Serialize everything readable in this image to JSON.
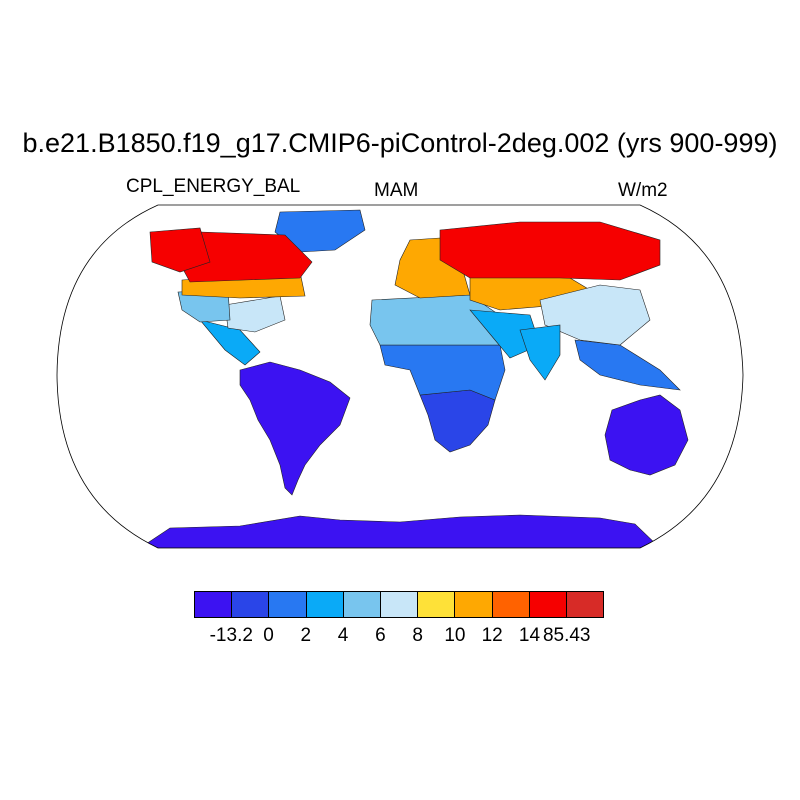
{
  "title": "b.e21.B1850.f19_g17.CMIP6-piControl-2deg.002 (yrs 900-999)",
  "left_label": "CPL_ENERGY_BAL",
  "center_label": "MAM",
  "right_label": "W/m2",
  "colorbar": {
    "colors": [
      "#3c12f2",
      "#2a45e8",
      "#2878f2",
      "#0aaaf7",
      "#78c5ee",
      "#c8e6f8",
      "#fee138",
      "#fea802",
      "#ff6200",
      "#f60000",
      "#d72b27"
    ],
    "labels": [
      "-13.2",
      "0",
      "2",
      "4",
      "6",
      "8",
      "10",
      "12",
      "14",
      "85.43"
    ]
  },
  "map": {
    "projection": "Robinson",
    "regions": [
      {
        "name": "Antarctica",
        "level": 0
      },
      {
        "name": "South America",
        "level": 0
      },
      {
        "name": "Australia",
        "level": 0
      },
      {
        "name": "Southern Africa",
        "level": 1
      },
      {
        "name": "Central Africa",
        "level": 2
      },
      {
        "name": "Sahara",
        "level": 4
      },
      {
        "name": "Arabia",
        "level": 3
      },
      {
        "name": "Central America",
        "level": 3
      },
      {
        "name": "Greenland",
        "level": 2
      },
      {
        "name": "Southeast Asia",
        "level": 2
      },
      {
        "name": "Eastern USA",
        "level": 5
      },
      {
        "name": "Western USA",
        "level": 4
      },
      {
        "name": "Southern Canada",
        "level": 7
      },
      {
        "name": "Northern Canada",
        "level": 9
      },
      {
        "name": "Alaska",
        "level": 9
      },
      {
        "name": "Europe",
        "level": 7
      },
      {
        "name": "Central Asia",
        "level": 7
      },
      {
        "name": "Siberia",
        "level": 9
      },
      {
        "name": "China",
        "level": 5
      },
      {
        "name": "India",
        "level": 3
      }
    ]
  }
}
